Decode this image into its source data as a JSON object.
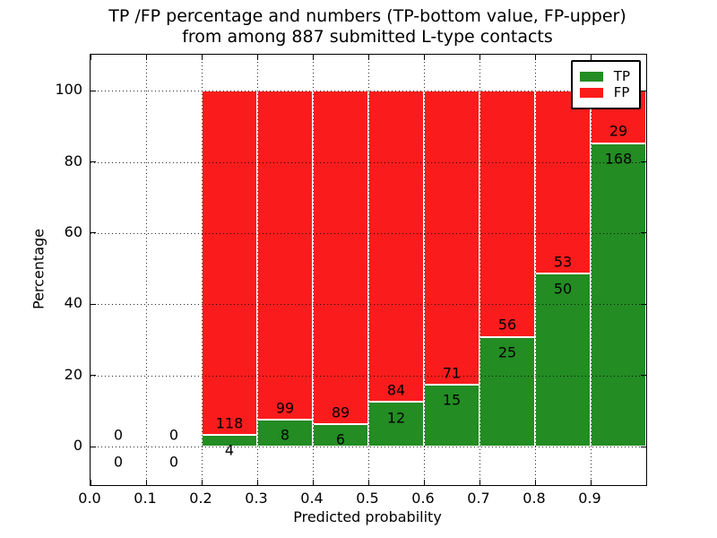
{
  "figure": {
    "title_line1": "TP /FP percentage and numbers (TP-bottom value, FP-upper)",
    "title_line2": "from among 887 submitted L-type contacts"
  },
  "axes": {
    "xlabel": "Predicted probability",
    "ylabel": "Percentage",
    "xtick_labels": [
      "0.0",
      "0.1",
      "0.2",
      "0.3",
      "0.4",
      "0.5",
      "0.6",
      "0.7",
      "0.8",
      "0.9"
    ],
    "xtick_values": [
      0,
      0.1,
      0.2,
      0.3,
      0.4,
      0.5,
      0.6,
      0.7,
      0.8,
      0.9
    ],
    "unlabeled_xticks": [
      1.0
    ],
    "ytick_values": [
      0,
      20,
      40,
      60,
      80,
      100
    ],
    "xlim": [
      0,
      1
    ],
    "ylim": [
      -10.8,
      110.1
    ],
    "grid": "dotted black, drawn above bars"
  },
  "legend": {
    "position": "upper right",
    "items": [
      {
        "label": "TP",
        "color": "#238c23"
      },
      {
        "label": "FP",
        "color": "#fa1c1c"
      }
    ]
  },
  "colors": {
    "tp": "#238c23",
    "fp": "#fa1c1c",
    "bar_edge": "#ffffff",
    "frame": "#000000",
    "background": "#ffffff"
  },
  "chart_data": {
    "type": "bar",
    "stacked": true,
    "title": "TP /FP percentage and numbers (TP-bottom value, FP-upper) from among 887 submitted L-type contacts",
    "xlabel": "Predicted probability",
    "ylabel": "Percentage",
    "ylim": [
      -10.8,
      110.1
    ],
    "xlim": [
      0,
      1
    ],
    "legend_position": "upper right",
    "total_contacts": 887,
    "bin_width": 0.1,
    "series": [
      {
        "name": "TP",
        "color": "#238c23"
      },
      {
        "name": "FP",
        "color": "#fa1c1c"
      }
    ],
    "bins": [
      {
        "x_start": 0.0,
        "tp_count": 0,
        "fp_count": 0,
        "tp_pct": 0,
        "fp_pct": 0
      },
      {
        "x_start": 0.1,
        "tp_count": 0,
        "fp_count": 0,
        "tp_pct": 0,
        "fp_pct": 0
      },
      {
        "x_start": 0.2,
        "tp_count": 4,
        "fp_count": 118,
        "tp_pct": 3.28,
        "fp_pct": 96.72
      },
      {
        "x_start": 0.3,
        "tp_count": 8,
        "fp_count": 99,
        "tp_pct": 7.48,
        "fp_pct": 92.52
      },
      {
        "x_start": 0.4,
        "tp_count": 6,
        "fp_count": 89,
        "tp_pct": 6.32,
        "fp_pct": 93.68
      },
      {
        "x_start": 0.5,
        "tp_count": 12,
        "fp_count": 84,
        "tp_pct": 12.5,
        "fp_pct": 87.5
      },
      {
        "x_start": 0.6,
        "tp_count": 15,
        "fp_count": 71,
        "tp_pct": 17.44,
        "fp_pct": 82.56
      },
      {
        "x_start": 0.7,
        "tp_count": 25,
        "fp_count": 56,
        "tp_pct": 30.86,
        "fp_pct": 69.14
      },
      {
        "x_start": 0.8,
        "tp_count": 50,
        "fp_count": 53,
        "tp_pct": 48.54,
        "fp_pct": 51.46
      },
      {
        "x_start": 0.9,
        "tp_count": 168,
        "fp_count": 29,
        "tp_pct": 85.28,
        "fp_pct": 14.72
      }
    ]
  }
}
